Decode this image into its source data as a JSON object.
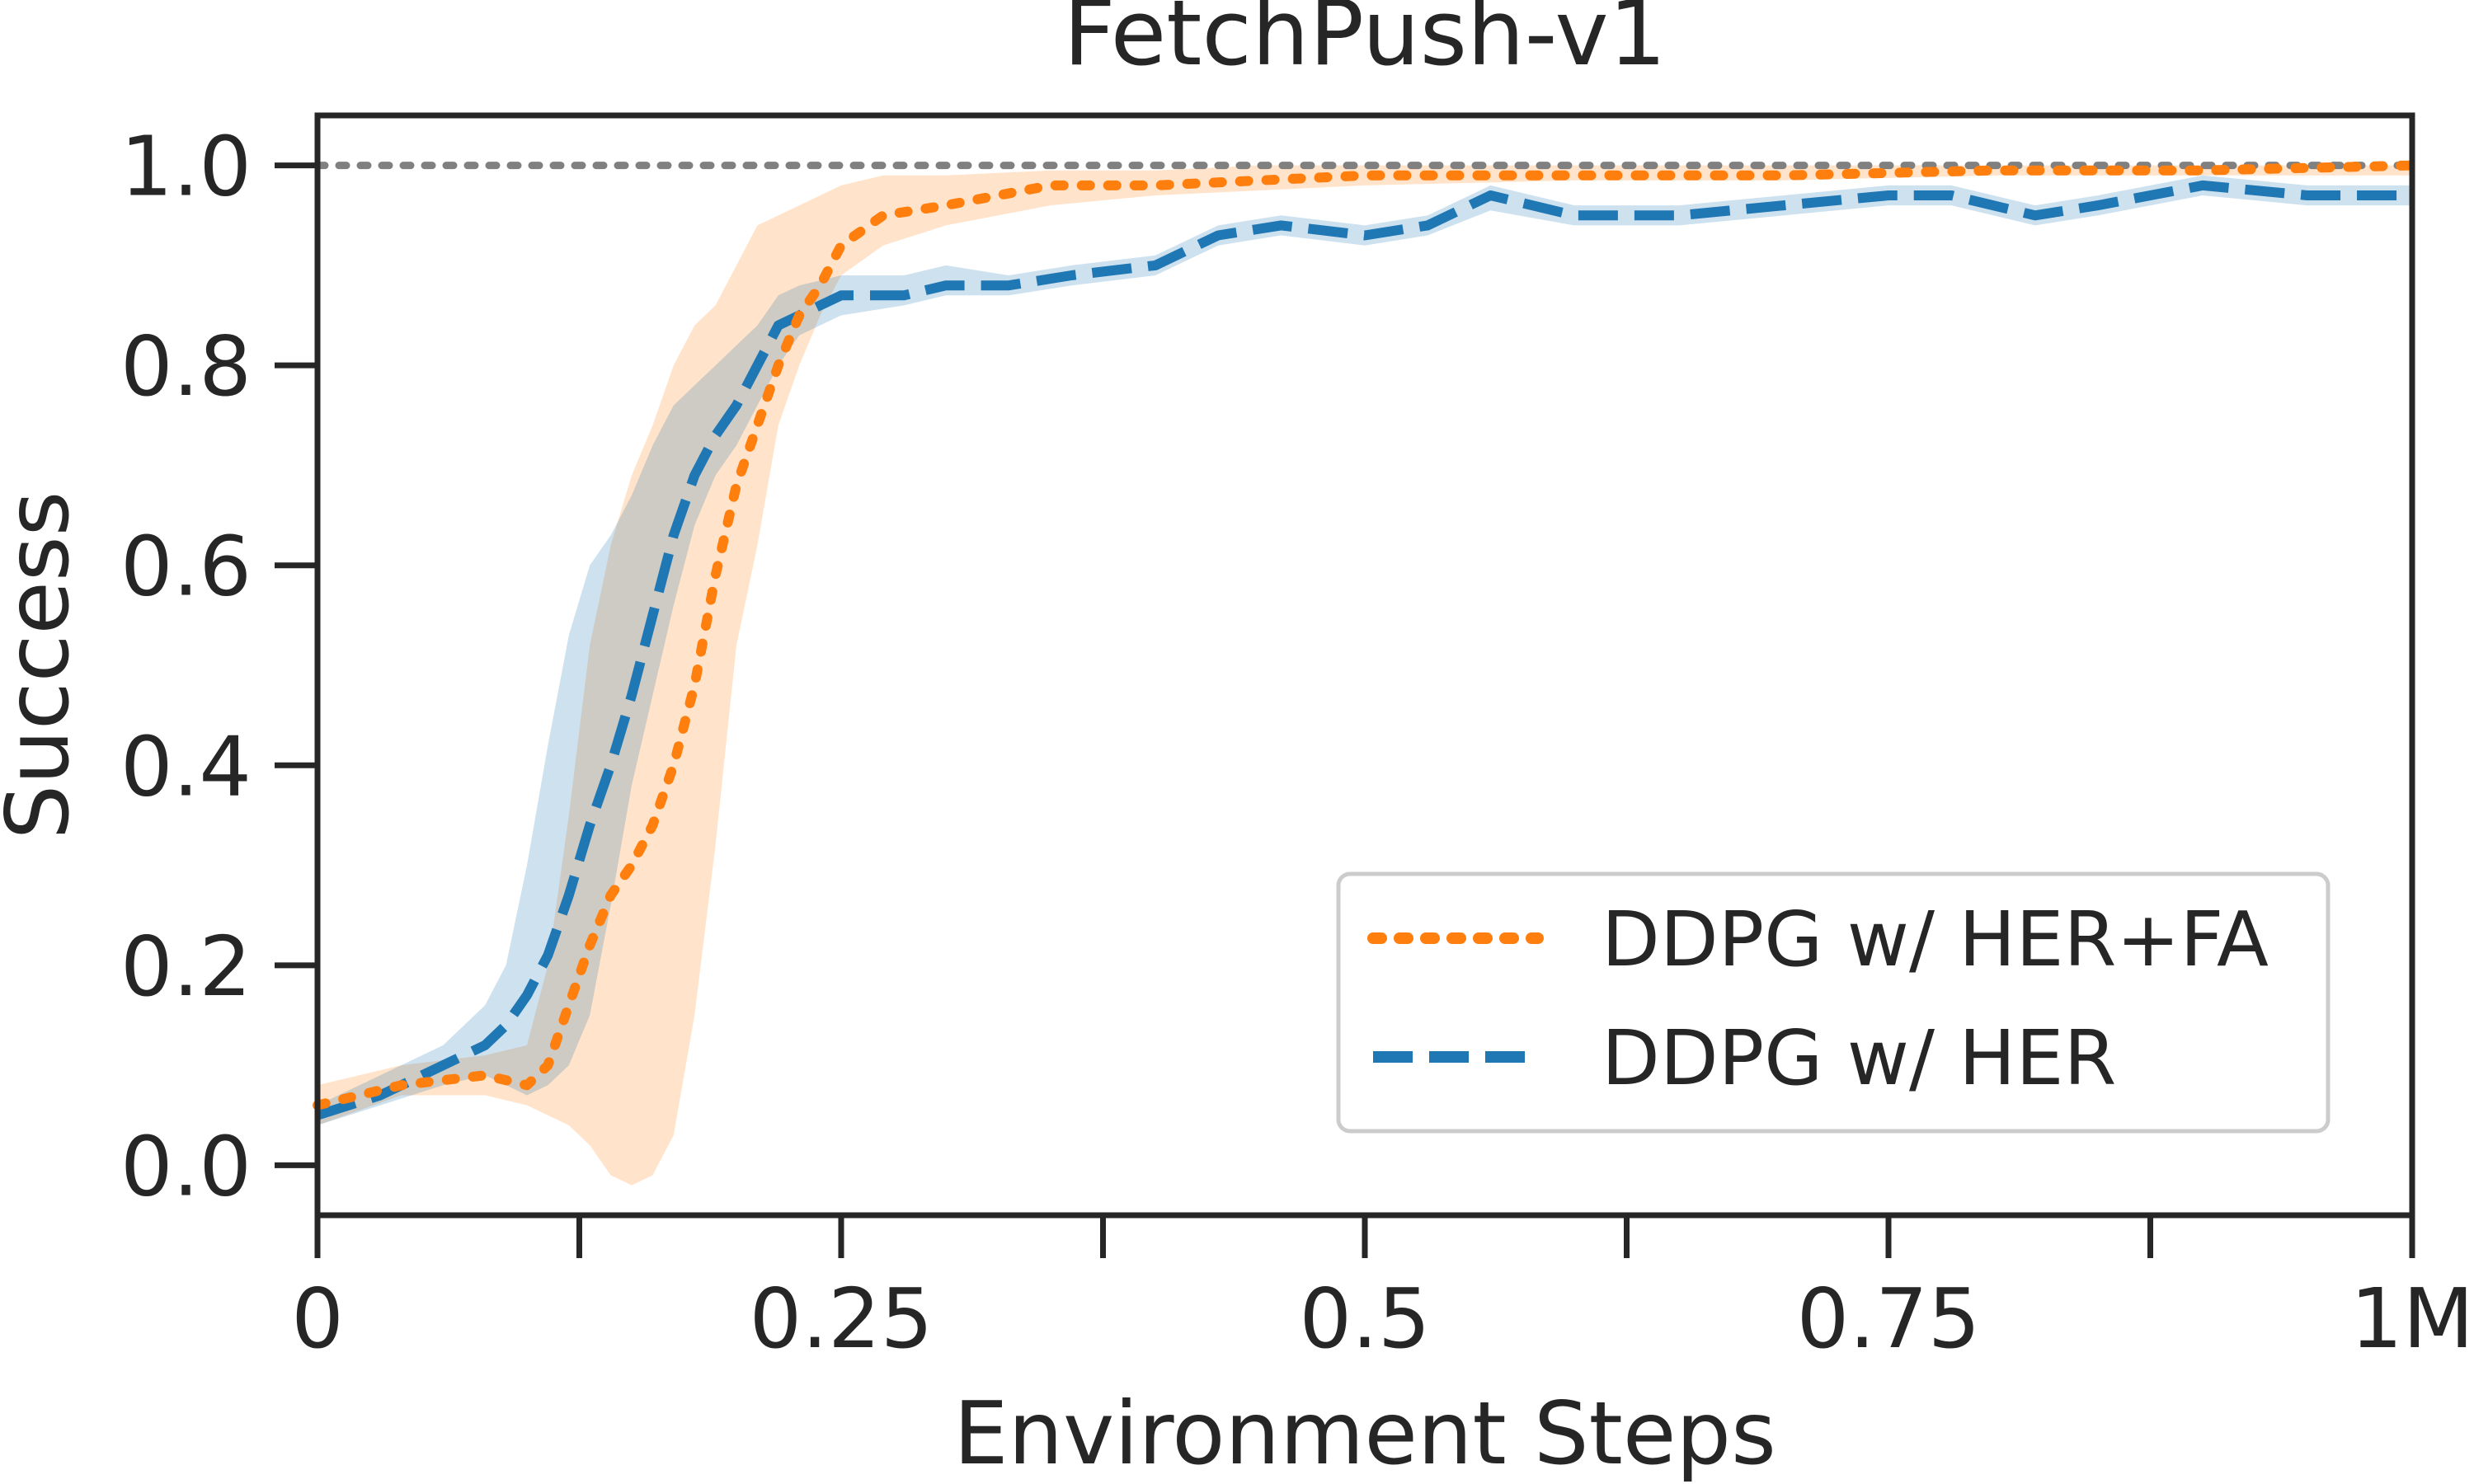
{
  "chart_data": {
    "type": "line",
    "title": "FetchPush-v1",
    "xlabel": "Environment Steps",
    "ylabel": "Success",
    "xlim": [
      0,
      1
    ],
    "ylim": [
      -0.05,
      1.05
    ],
    "x_ticks": [
      {
        "value": 0,
        "label": "0"
      },
      {
        "value": 0.25,
        "label": "0.25"
      },
      {
        "value": 0.5,
        "label": "0.5"
      },
      {
        "value": 0.75,
        "label": "0.75"
      },
      {
        "value": 1.0,
        "label": "1M"
      }
    ],
    "x_minor_ticks": [
      0.125,
      0.375,
      0.625,
      0.875
    ],
    "y_ticks": [
      {
        "value": 0.0,
        "label": "0.0"
      },
      {
        "value": 0.2,
        "label": "0.2"
      },
      {
        "value": 0.4,
        "label": "0.4"
      },
      {
        "value": 0.6,
        "label": "0.6"
      },
      {
        "value": 0.8,
        "label": "0.8"
      },
      {
        "value": 1.0,
        "label": "1.0"
      }
    ],
    "reference_line": {
      "y": 1.0,
      "color": "#808080",
      "style": "dotted"
    },
    "grid": false,
    "legend_position": "lower-right",
    "series": [
      {
        "name": "DDPG w/ HER+FA",
        "color": "#ff7f0e",
        "style": "dotted",
        "x": [
          0,
          0.04,
          0.08,
          0.1,
          0.11,
          0.12,
          0.13,
          0.14,
          0.15,
          0.16,
          0.17,
          0.18,
          0.19,
          0.2,
          0.21,
          0.22,
          0.23,
          0.24,
          0.25,
          0.27,
          0.3,
          0.35,
          0.4,
          0.45,
          0.5,
          0.6,
          0.7,
          0.8,
          0.9,
          1.0
        ],
        "y": [
          0.06,
          0.08,
          0.09,
          0.08,
          0.1,
          0.16,
          0.22,
          0.27,
          0.3,
          0.34,
          0.4,
          0.48,
          0.59,
          0.68,
          0.74,
          0.8,
          0.85,
          0.88,
          0.92,
          0.95,
          0.96,
          0.98,
          0.98,
          0.985,
          0.99,
          0.99,
          0.99,
          0.995,
          0.995,
          1.0
        ],
        "lower": [
          0.04,
          0.07,
          0.07,
          0.06,
          0.05,
          0.04,
          0.02,
          -0.01,
          -0.02,
          -0.01,
          0.03,
          0.15,
          0.32,
          0.52,
          0.62,
          0.74,
          0.8,
          0.85,
          0.89,
          0.92,
          0.94,
          0.96,
          0.97,
          0.975,
          0.98,
          0.985,
          0.985,
          0.99,
          0.99,
          0.99
        ],
        "upper": [
          0.08,
          0.1,
          0.11,
          0.12,
          0.2,
          0.35,
          0.52,
          0.62,
          0.69,
          0.74,
          0.8,
          0.84,
          0.86,
          0.9,
          0.94,
          0.95,
          0.96,
          0.97,
          0.98,
          0.99,
          0.99,
          0.995,
          0.995,
          1.0,
          1.0,
          1.0,
          1.0,
          1.0,
          1.0,
          1.0
        ]
      },
      {
        "name": "DDPG w/ HER",
        "color": "#1f77b4",
        "style": "dashed",
        "x": [
          0,
          0.03,
          0.06,
          0.08,
          0.09,
          0.1,
          0.11,
          0.12,
          0.13,
          0.14,
          0.15,
          0.16,
          0.17,
          0.18,
          0.19,
          0.2,
          0.21,
          0.22,
          0.23,
          0.25,
          0.28,
          0.3,
          0.33,
          0.36,
          0.4,
          0.43,
          0.46,
          0.5,
          0.53,
          0.56,
          0.6,
          0.65,
          0.7,
          0.75,
          0.78,
          0.82,
          0.85,
          0.9,
          0.95,
          1.0
        ],
        "y": [
          0.05,
          0.07,
          0.1,
          0.12,
          0.14,
          0.17,
          0.21,
          0.27,
          0.34,
          0.4,
          0.47,
          0.55,
          0.63,
          0.69,
          0.73,
          0.76,
          0.8,
          0.84,
          0.85,
          0.87,
          0.87,
          0.88,
          0.88,
          0.89,
          0.9,
          0.93,
          0.94,
          0.93,
          0.94,
          0.97,
          0.95,
          0.95,
          0.96,
          0.97,
          0.97,
          0.95,
          0.96,
          0.98,
          0.97,
          0.97
        ],
        "lower": [
          0.04,
          0.06,
          0.08,
          0.09,
          0.08,
          0.07,
          0.08,
          0.1,
          0.15,
          0.26,
          0.38,
          0.47,
          0.56,
          0.64,
          0.69,
          0.72,
          0.76,
          0.8,
          0.83,
          0.85,
          0.86,
          0.87,
          0.87,
          0.88,
          0.89,
          0.92,
          0.93,
          0.92,
          0.93,
          0.955,
          0.94,
          0.94,
          0.95,
          0.96,
          0.96,
          0.94,
          0.95,
          0.97,
          0.96,
          0.96
        ],
        "upper": [
          0.06,
          0.09,
          0.12,
          0.16,
          0.2,
          0.3,
          0.42,
          0.53,
          0.6,
          0.63,
          0.67,
          0.72,
          0.76,
          0.78,
          0.8,
          0.82,
          0.84,
          0.87,
          0.88,
          0.89,
          0.89,
          0.9,
          0.89,
          0.9,
          0.91,
          0.94,
          0.95,
          0.94,
          0.95,
          0.98,
          0.96,
          0.96,
          0.97,
          0.98,
          0.98,
          0.96,
          0.97,
          0.99,
          0.98,
          0.98
        ]
      }
    ]
  }
}
